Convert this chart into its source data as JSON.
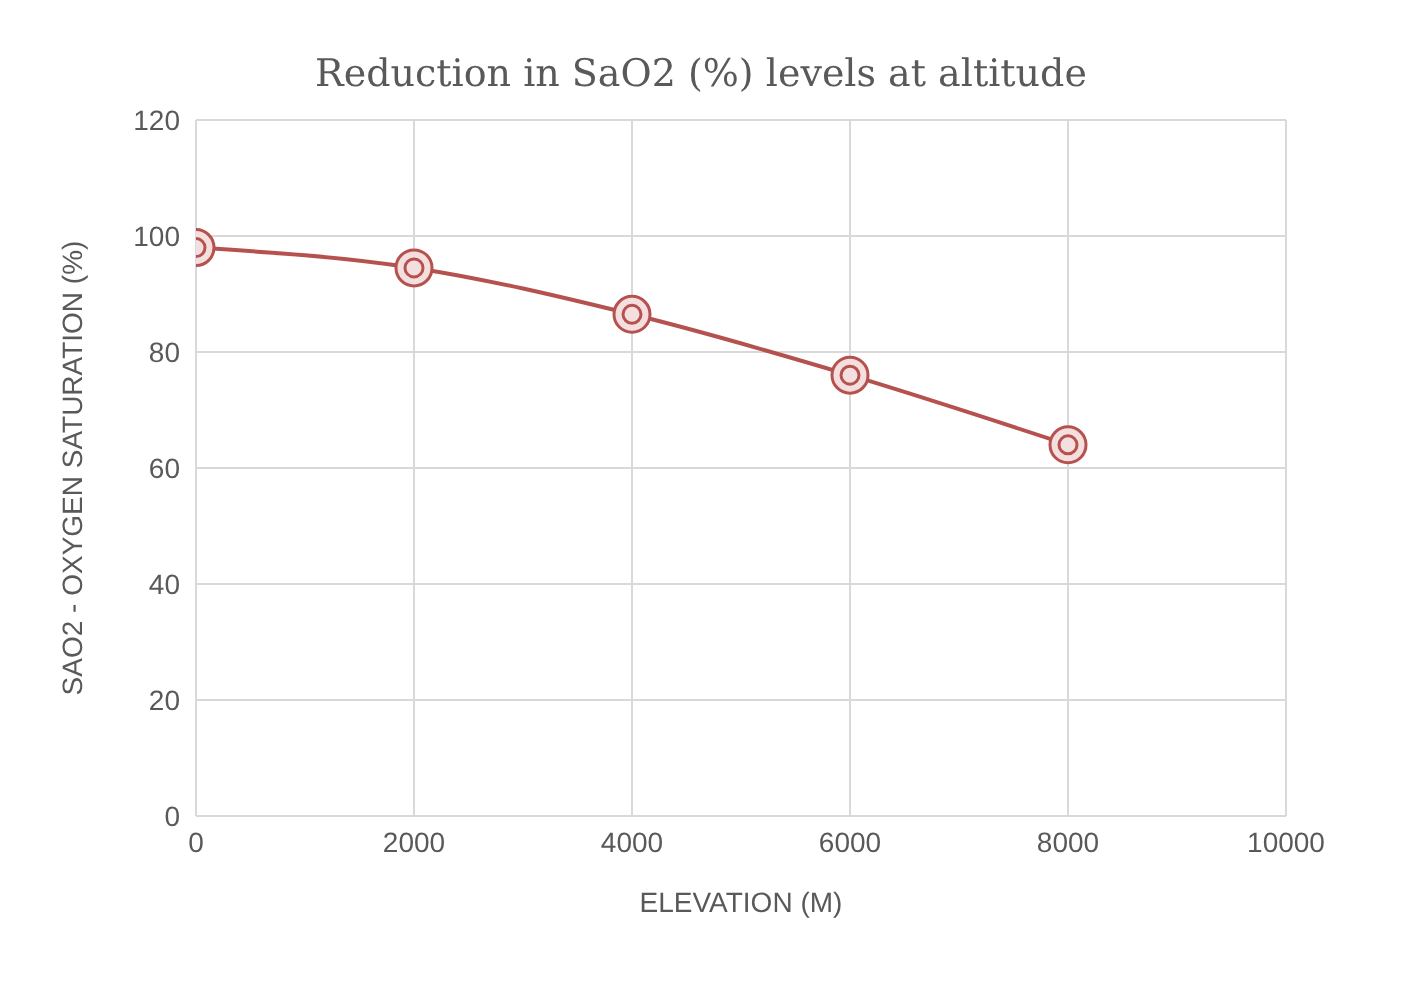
{
  "chart_data": {
    "type": "line",
    "title": "Reduction in SaO2 (%) levels at altitude",
    "xlabel": "ELEVATION (M)",
    "ylabel": "SAO2 - OXYGEN SATURATION (%)",
    "x": [
      0,
      2000,
      4000,
      6000,
      8000
    ],
    "series": [
      {
        "color": "#b5524f",
        "values": [
          98,
          94.5,
          86.5,
          76,
          64
        ]
      }
    ],
    "xlim": [
      0,
      10000
    ],
    "xticks": [
      0,
      2000,
      4000,
      6000,
      8000,
      10000
    ],
    "ylim": [
      0,
      120
    ],
    "yticks": [
      0,
      20,
      40,
      60,
      80,
      100,
      120
    ],
    "grid": true,
    "marker": "circle",
    "line_style": "solid"
  }
}
